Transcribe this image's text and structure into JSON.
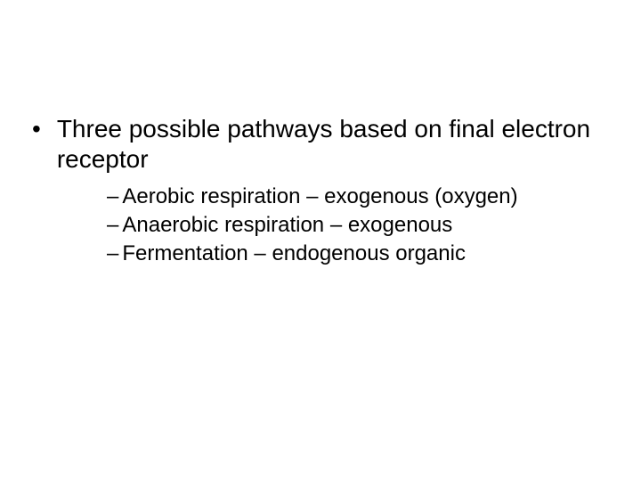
{
  "main": {
    "bullet_text": "Three possible pathways based on final electron receptor",
    "items": [
      "Aerobic respiration – exogenous (oxygen)",
      "Anaerobic respiration – exogenous",
      "Fermentation – endogenous organic"
    ]
  },
  "style": {
    "background_color": "#ffffff",
    "text_color": "#000000",
    "main_fontsize": 28,
    "sub_fontsize": 24
  }
}
